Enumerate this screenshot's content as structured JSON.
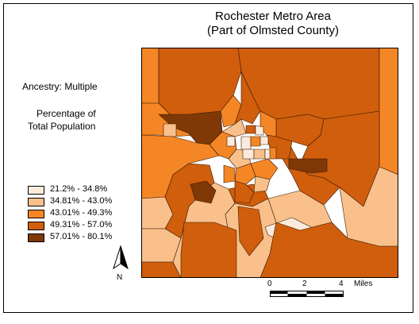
{
  "map": {
    "title_line1": "Rochester Metro Area",
    "title_line2": "(Part of Olmsted County)",
    "subtitle": "Ancestry: Multiple",
    "caption_line1": "Percentage of",
    "caption_line2": "Total Population"
  },
  "legend": {
    "classes": [
      {
        "label": "21.2% - 34.8%",
        "color": "#fcebdc"
      },
      {
        "label": "34.81% - 43.0%",
        "color": "#f9c08b"
      },
      {
        "label": "43.01% - 49.3%",
        "color": "#f58626"
      },
      {
        "label": "49.31% - 57.0%",
        "color": "#d05e0d"
      },
      {
        "label": "57.01% - 80.1%",
        "color": "#7f3806"
      }
    ]
  },
  "north_arrow": {
    "label": "N"
  },
  "scale_bar": {
    "label_0": "0",
    "label_2": "2",
    "label_4": "4",
    "units": "Miles"
  }
}
